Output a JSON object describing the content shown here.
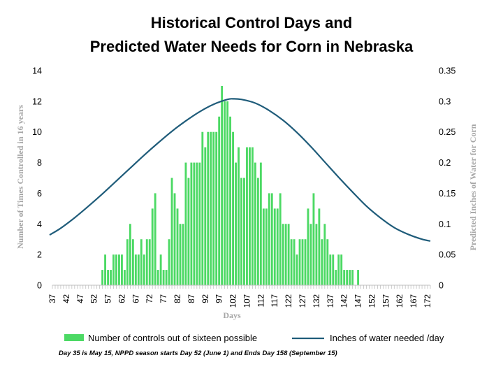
{
  "chart_data": {
    "type": "bar",
    "title_lines": [
      "Historical Control Days and",
      "Predicted Water Needs for Corn in Nebraska"
    ],
    "xlabel": "Days",
    "ylabel_left": "Number of Times Controlled in 16 years",
    "ylabel_right": "Predicted Inches of Water for Corn",
    "x_range": [
      37,
      173
    ],
    "x_ticks": [
      "37",
      "42",
      "47",
      "52",
      "57",
      "62",
      "67",
      "72",
      "77",
      "82",
      "87",
      "92",
      "97",
      "102",
      "107",
      "112",
      "117",
      "122",
      "127",
      "132",
      "137",
      "142",
      "147",
      "152",
      "157",
      "162",
      "167",
      "172"
    ],
    "y_left_range": [
      0,
      14
    ],
    "y_left_ticks": [
      "0",
      "2",
      "4",
      "6",
      "8",
      "10",
      "12",
      "14"
    ],
    "y_right_range": [
      0,
      0.35
    ],
    "y_right_ticks": [
      "0",
      "0.05",
      "0.1",
      "0.15",
      "0.2",
      "0.25",
      "0.3",
      "0.35"
    ],
    "grid": false,
    "legend_position": "bottom",
    "series": [
      {
        "name": "Number of controls out of sixteen possible",
        "kind": "bar",
        "color": "#4cd964",
        "x": [
          55,
          56,
          57,
          58,
          59,
          60,
          61,
          62,
          63,
          64,
          65,
          66,
          67,
          68,
          69,
          70,
          71,
          72,
          73,
          74,
          75,
          76,
          77,
          78,
          79,
          80,
          81,
          82,
          83,
          84,
          85,
          86,
          87,
          88,
          89,
          90,
          91,
          92,
          93,
          94,
          95,
          96,
          97,
          98,
          99,
          100,
          101,
          102,
          103,
          104,
          105,
          106,
          107,
          108,
          109,
          110,
          111,
          112,
          113,
          114,
          115,
          116,
          117,
          118,
          119,
          120,
          121,
          122,
          123,
          124,
          125,
          126,
          127,
          128,
          129,
          130,
          131,
          132,
          133,
          134,
          135,
          136,
          137,
          138,
          139,
          140,
          141,
          142,
          143,
          144,
          145,
          146,
          147
        ],
        "values": [
          1,
          2,
          1,
          1,
          2,
          2,
          2,
          2,
          1,
          3,
          4,
          3,
          2,
          2,
          3,
          2,
          3,
          3,
          5,
          6,
          1,
          2,
          1,
          1,
          3,
          7,
          6,
          5,
          4,
          4,
          8,
          7,
          8,
          8,
          8,
          8,
          10,
          9,
          10,
          10,
          10,
          10,
          11,
          13,
          12,
          12,
          11,
          10,
          8,
          9,
          7,
          7,
          9,
          9,
          9,
          8,
          7,
          8,
          5,
          5,
          6,
          6,
          5,
          5,
          6,
          4,
          4,
          4,
          3,
          3,
          2,
          3,
          3,
          3,
          5,
          4,
          6,
          4,
          5,
          3,
          4,
          3,
          2,
          2,
          1,
          2,
          2,
          1,
          1,
          1,
          1,
          0,
          1
        ]
      },
      {
        "name": "Inches of water needed /day",
        "kind": "line",
        "color": "#1f5c7a",
        "axis": "right",
        "x": [
          36,
          40,
          45,
          50,
          55,
          60,
          65,
          70,
          75,
          80,
          85,
          90,
          95,
          100,
          102,
          105,
          110,
          115,
          120,
          125,
          130,
          135,
          140,
          145,
          150,
          155,
          160,
          165,
          170,
          173
        ],
        "values": [
          0.082,
          0.093,
          0.11,
          0.129,
          0.149,
          0.17,
          0.191,
          0.212,
          0.232,
          0.251,
          0.268,
          0.283,
          0.295,
          0.303,
          0.304,
          0.303,
          0.297,
          0.285,
          0.269,
          0.249,
          0.226,
          0.201,
          0.176,
          0.152,
          0.129,
          0.11,
          0.094,
          0.083,
          0.075,
          0.072
        ]
      }
    ]
  },
  "footnote": "Day 35 is May 15, NPPD season starts Day 52 (June 1) and Ends Day 158 (September 15)"
}
